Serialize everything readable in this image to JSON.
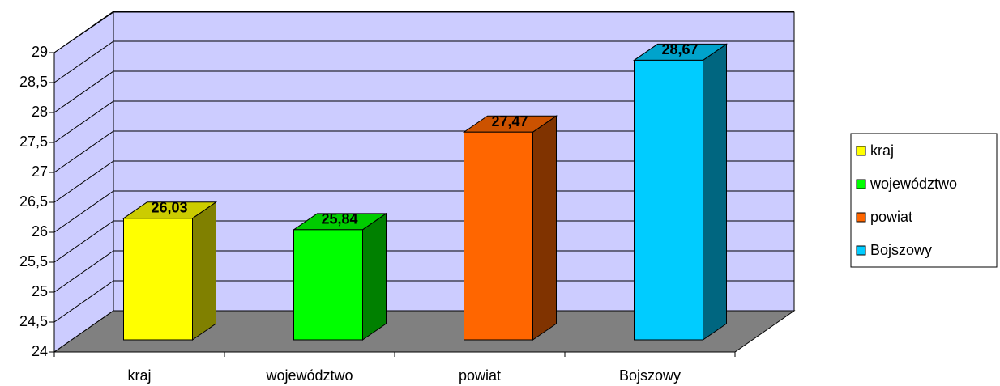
{
  "chart_data": {
    "type": "bar3d",
    "categories": [
      "kraj",
      "województwo",
      "powiat",
      "Bojszowy"
    ],
    "values": [
      26.03,
      25.84,
      27.47,
      28.67
    ],
    "value_labels": [
      "26,03",
      "25,84",
      "27,47",
      "28,67"
    ],
    "colors": [
      "#ffff00",
      "#00ff00",
      "#ff6600",
      "#00ccff"
    ],
    "ylim": [
      24,
      29
    ],
    "yticks": [
      24,
      {
        "value": 24.5,
        "label": "24,5"
      },
      25,
      {
        "value": 25.5,
        "label": "25,5"
      },
      26,
      {
        "value": 26.5,
        "label": "26,5"
      },
      27,
      {
        "value": 27.5,
        "label": "27,5"
      },
      28,
      {
        "value": 28.5,
        "label": "28,5"
      },
      29
    ],
    "grid": true,
    "legend": "right"
  }
}
